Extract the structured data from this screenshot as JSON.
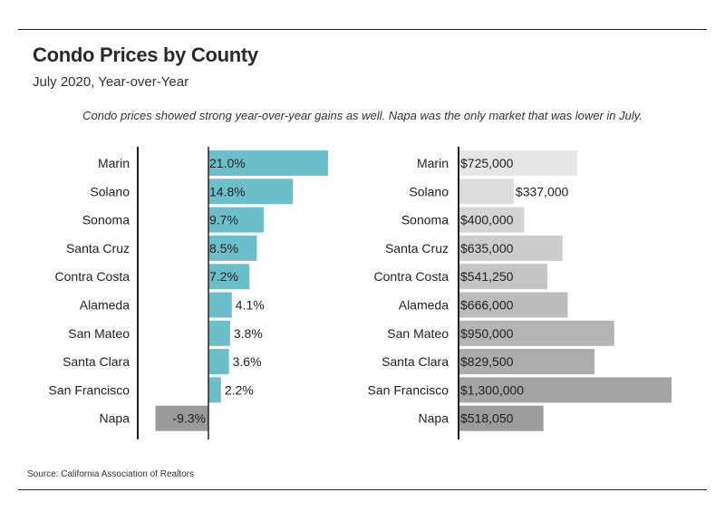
{
  "header": {
    "title": "Condo Prices by County",
    "subtitle": "July 2020, Year-over-Year",
    "note": "Condo prices showed strong year-over-year gains as well. Napa was the only market that was lower in July."
  },
  "footer": {
    "source": "Source:  California Association of Realtors"
  },
  "chart_data": [
    {
      "type": "bar",
      "orientation": "horizontal",
      "categories": [
        "Marin",
        "Solano",
        "Sonoma",
        "Santa Cruz",
        "Contra Costa",
        "Alameda",
        "San Mateo",
        "Santa Clara",
        "San Francisco",
        "Napa"
      ],
      "values": [
        21.0,
        14.8,
        9.7,
        8.5,
        7.2,
        4.1,
        3.8,
        3.6,
        2.2,
        -9.3
      ],
      "labels": [
        "21.0%",
        "14.8%",
        "9.7%",
        "8.5%",
        "7.2%",
        "4.1%",
        "3.8%",
        "3.6%",
        "2.2%",
        "-9.3%"
      ],
      "colors": {
        "positive": "#6bbfcb",
        "negative": "#9a9a9a"
      },
      "unit": "%"
    },
    {
      "type": "bar",
      "orientation": "horizontal",
      "categories": [
        "Marin",
        "Solano",
        "Sonoma",
        "Santa Cruz",
        "Contra Costa",
        "Alameda",
        "San Mateo",
        "Santa Clara",
        "San Francisco",
        "Napa"
      ],
      "values": [
        725000,
        337000,
        400000,
        635000,
        541250,
        666000,
        950000,
        829500,
        1300000,
        518050
      ],
      "labels": [
        "$725,000",
        "$337,000",
        "$400,000",
        "$635,000",
        "$541,250",
        "$666,000",
        "$950,000",
        "$829,500",
        "$1,300,000",
        "$518,050"
      ],
      "colors": [
        "#e6e6e6",
        "#dcdcdc",
        "#d4d4d4",
        "#cccccc",
        "#c4c4c4",
        "#bcbcbc",
        "#b4b4b4",
        "#acacac",
        "#a4a4a4",
        "#9c9c9c"
      ]
    }
  ]
}
